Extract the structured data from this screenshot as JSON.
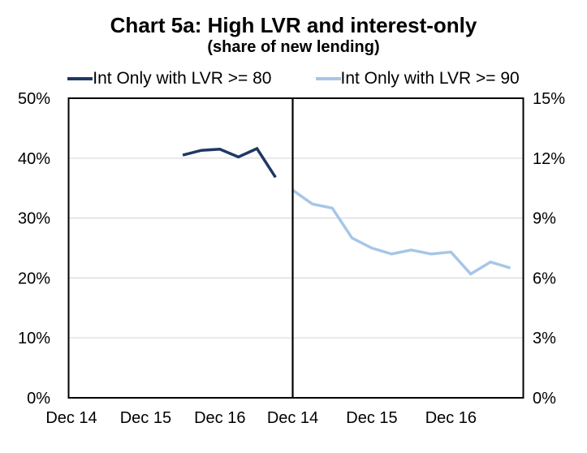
{
  "header": {
    "title": "Chart 5a: High LVR and interest-only",
    "subtitle": "(share of new lending)"
  },
  "legend": {
    "items": [
      {
        "label": "Int Only with LVR >= 80",
        "color": "#1F3864"
      },
      {
        "label": "Int Only with LVR >= 90",
        "color": "#A7C6E7"
      }
    ]
  },
  "chart_data": {
    "type": "line",
    "title": "Chart 5a: High LVR and interest-only",
    "subtitle": "(share of new lending)",
    "dual_panel": true,
    "grid": true,
    "grid_color": "#D9D9D9",
    "frame_color": "#000000",
    "left_axis": {
      "min": 0,
      "max": 50,
      "tick_values": [
        0,
        10,
        20,
        30,
        40,
        50
      ],
      "tick_labels": [
        "0%",
        "10%",
        "20%",
        "30%",
        "40%",
        "50%"
      ]
    },
    "right_axis": {
      "min": 0,
      "max": 15,
      "tick_values": [
        0,
        3,
        6,
        9,
        12,
        15
      ],
      "tick_labels": [
        "0%",
        "3%",
        "6%",
        "9%",
        "12%",
        "15%"
      ]
    },
    "panels": [
      {
        "x_tick_labels": [
          "Dec 14",
          "Dec 15",
          "Dec 16"
        ]
      },
      {
        "x_tick_labels": [
          "Dec 14",
          "Dec 15",
          "Dec 16"
        ]
      }
    ],
    "series": [
      {
        "name": "Int Only with LVR >= 80",
        "axis": "left",
        "panel": 0,
        "color": "#1F3864",
        "x": [
          "Jun 16",
          "Sep 16",
          "Dec 16",
          "Mar 17",
          "Jun 17",
          "Sep 17"
        ],
        "values": [
          40.5,
          41.3,
          41.5,
          40.2,
          41.6,
          36.8
        ]
      },
      {
        "name": "Int Only with LVR >= 90",
        "axis": "right",
        "panel": 1,
        "color": "#A7C6E7",
        "x": [
          "Dec 14",
          "Mar 15",
          "Jun 15",
          "Sep 15",
          "Dec 15",
          "Mar 16",
          "Jun 16",
          "Sep 16",
          "Dec 16",
          "Mar 17",
          "Jun 17",
          "Sep 17"
        ],
        "values": [
          10.4,
          9.7,
          9.5,
          8.0,
          7.5,
          7.2,
          7.4,
          7.2,
          7.3,
          6.2,
          6.8,
          6.5
        ]
      }
    ]
  }
}
